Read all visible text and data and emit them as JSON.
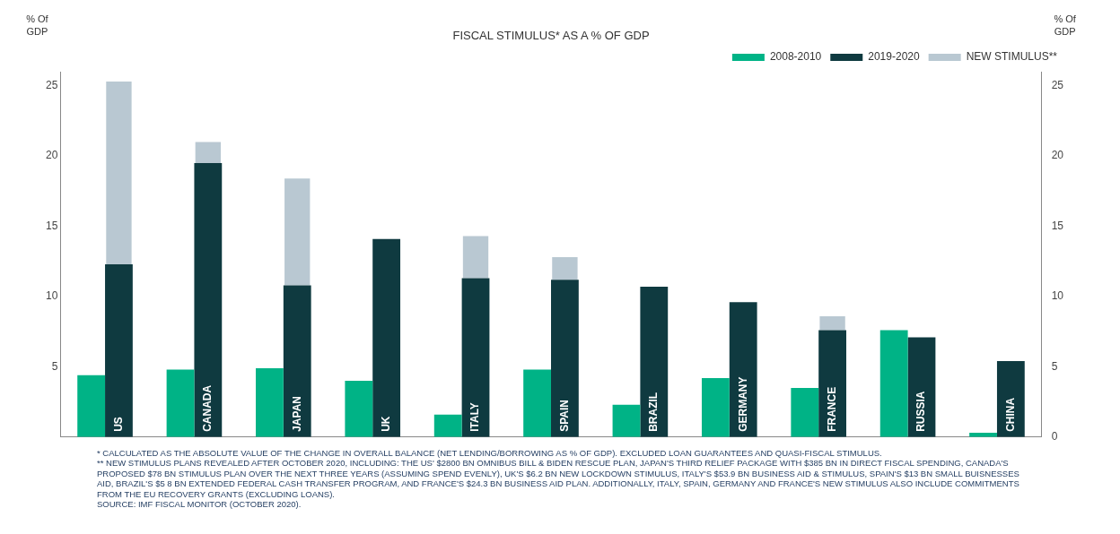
{
  "chart_data": {
    "type": "bar",
    "title": "FISCAL STIMULUS* AS A % OF GDP",
    "ylabel": "% Of GDP",
    "y2label": "% Of GDP",
    "categories": [
      "US",
      "CANADA",
      "JAPAN",
      "UK",
      "ITALY",
      "SPAIN",
      "BRAZIL",
      "GERMANY",
      "FRANCE",
      "RUSSIA",
      "CHINA"
    ],
    "series": [
      {
        "name": "2008-2010",
        "color": "#00b386",
        "values": [
          4.4,
          4.8,
          4.9,
          4.0,
          1.6,
          4.8,
          2.3,
          4.2,
          3.5,
          7.6,
          0.3
        ]
      },
      {
        "name": "2019-2020",
        "color": "#0f3a40",
        "values": [
          12.3,
          19.5,
          10.8,
          14.1,
          11.3,
          11.2,
          10.7,
          9.6,
          7.6,
          7.1,
          5.4
        ]
      },
      {
        "name": "NEW STIMULUS**",
        "color": "#b9c8d2",
        "values": [
          13.0,
          1.5,
          7.6,
          null,
          3.0,
          1.6,
          null,
          null,
          1.0,
          null,
          null
        ],
        "base": [
          12.3,
          19.5,
          10.8,
          null,
          11.3,
          11.2,
          null,
          null,
          7.6,
          null,
          null
        ]
      }
    ],
    "ylim": [
      0,
      26
    ],
    "yticks": [
      5,
      10,
      15,
      20,
      25
    ],
    "y2lim": [
      0,
      26
    ],
    "y2ticks": [
      0,
      5,
      10,
      15,
      20,
      25
    ],
    "grid": false,
    "legend": "top",
    "annotations": [
      "* CALCULATED AS THE ABSOLUTE VALUE OF THE CHANGE IN OVERALL BALANCE (NET LENDING/BORROWING AS % OF GDP). EXCLUDED LOAN GUARANTEES AND QUASI-FISCAL STIMULUS.",
      "** NEW STIMULUS PLANS REVEALED AFTER OCTOBER 2020, INCLUDING: THE US' $2800 BN OMNIBUS BILL & BIDEN RESCUE PLAN, JAPAN'S THIRD RELIEF PACKAGE WITH $385 BN IN DIRECT FISCAL SPENDING, CANADA'S PROPOSED $78 BN STIMULUS PLAN OVER THE NEXT THREE YEARS (ASSUMING SPEND EVENLY), UK'S $6.2 BN NEW LOCKDOWN STIMULUS, ITALY'S $53.9 BN BUSINESS AID & STIMULUS, SPAIN'S $13 BN SMALL BUISNESSES AID, BRAZIL'S $5 8 BN EXTENDED FEDERAL CASH TRANSFER PROGRAM, AND FRANCE'S $24.3 BN BUSINESS AID PLAN. ADDITIONALLY, ITALY, SPAIN, GERMANY AND FRANCE'S NEW STIMULUS ALSO INCLUDE COMMITMENTS FROM THE EU RECOVERY GRANTS (EXCLUDING LOANS).",
      "SOURCE: IMF FISCAL MONITOR (OCTOBER 2020)."
    ]
  }
}
